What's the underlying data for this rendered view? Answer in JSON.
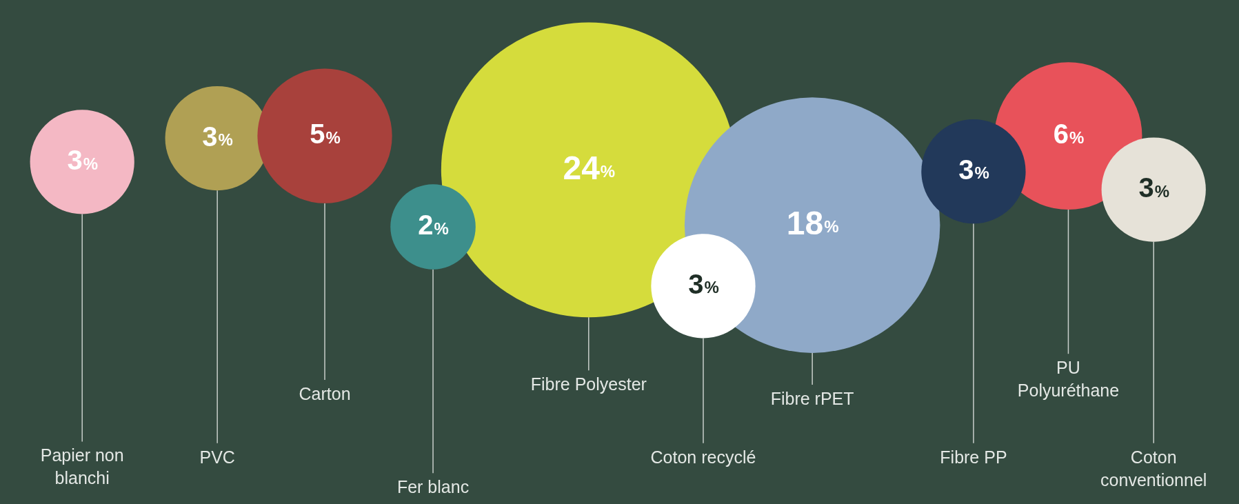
{
  "chart_data": {
    "type": "other",
    "categories": [
      "Papier non blanchi",
      "PVC",
      "Carton",
      "Fer blanc",
      "Fibre Polyester",
      "Coton recyclé",
      "Fibre rPET",
      "Fibre PP",
      "PU Polyuréthane",
      "Coton conventionnel"
    ],
    "values": [
      3,
      3,
      5,
      2,
      24,
      3,
      18,
      3,
      6,
      3
    ],
    "value_labels": [
      "3%",
      "3%",
      "5%",
      "2%",
      "24%",
      "3%",
      "18%",
      "3%",
      "6%",
      "3%"
    ],
    "colors": [
      "#f4b8c4",
      "#b0a054",
      "#a8413c",
      "#3d8f8c",
      "#d5dc3c",
      "#ffffff",
      "#8fa9c8",
      "#22395a",
      "#e8525a",
      "#e6e2d8"
    ]
  }
}
